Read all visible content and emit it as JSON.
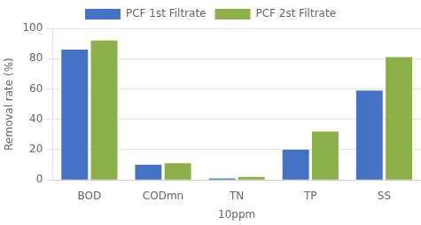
{
  "chart_data": {
    "type": "bar",
    "categories": [
      "BOD",
      "CODmn",
      "TN",
      "TP",
      "SS"
    ],
    "series": [
      {
        "name": "PCF 1st Filtrate",
        "color": "#4472C4",
        "values": [
          86,
          10,
          1,
          20,
          59
        ]
      },
      {
        "name": "PCF 2st Filtrate",
        "color": "#8DB04A",
        "values": [
          92,
          11,
          2,
          32,
          81
        ]
      }
    ],
    "xlabel": "10ppm",
    "ylabel": "Removal rate (%)",
    "ylim": [
      0,
      100
    ],
    "yticks": [
      0,
      20,
      40,
      60,
      80,
      100
    ],
    "grid": true,
    "legend": "top"
  }
}
